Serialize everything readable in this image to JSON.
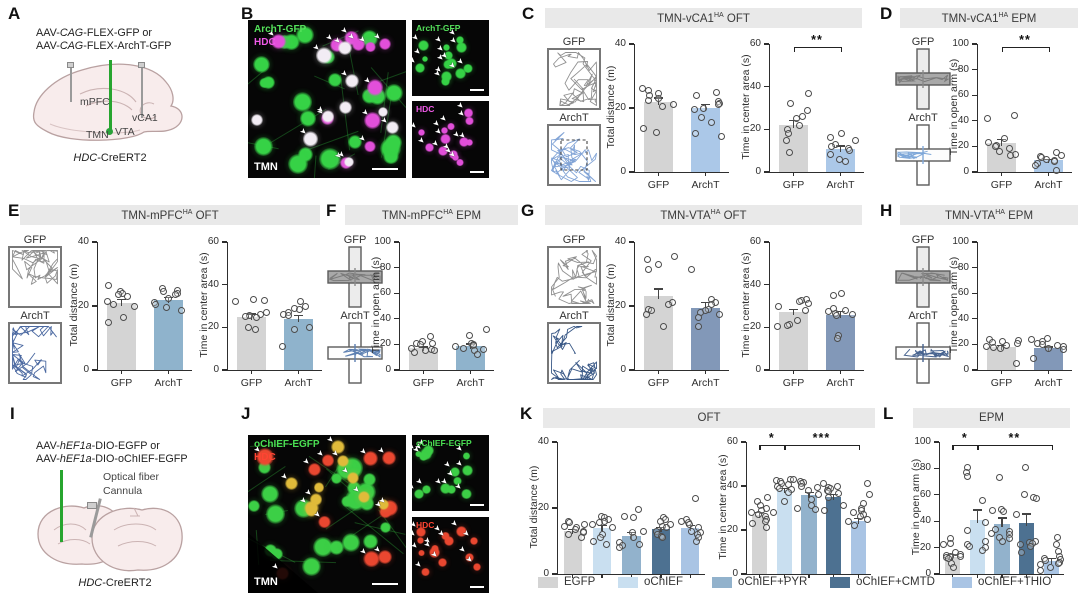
{
  "colors": {
    "header_bg": "#e9e9e9",
    "gfp_bar": "#d4d4d4",
    "archt_c": "#abc8e8",
    "archt_e": "#8fb3cc",
    "archt_g": "#8298b8",
    "green_fiber": "#27a52f"
  },
  "legend": {
    "position": "bottom",
    "items": [
      {
        "label": "EGFP",
        "color": "#d4d4d4"
      },
      {
        "label": "oChIEF",
        "color": "#c9dff0"
      },
      {
        "label": "oChIEF+PYR",
        "color": "#92b2cc"
      },
      {
        "label": "oChIEF+CMTD",
        "color": "#4d7191"
      },
      {
        "label": "oChIEF+THIO",
        "color": "#a9c4e4"
      }
    ]
  },
  "panels": {
    "A": {
      "letter": "A",
      "line1": {
        "pre": "AAV-",
        "it": "CAG",
        "post": "-FLEX-GFP or"
      },
      "line2": {
        "pre": "AAV-",
        "it": "CAG",
        "post": "-FLEX-ArchT-GFP"
      },
      "regions": {
        "mpfc": "mPFC",
        "vca1": "vCA1",
        "tmn": "TMN",
        "vta": "VTA"
      },
      "genotype": {
        "it": "HDC",
        "post": "-CreERT2"
      }
    },
    "B": {
      "letter": "B",
      "overlay_labels": [
        {
          "text": "ArchT-GFP",
          "color": "#55e25b"
        },
        {
          "text": "HDC",
          "color": "#f05ae8"
        }
      ],
      "region_label": "TMN",
      "sub_panels": [
        {
          "label": "ArchT-GFP",
          "color": "#55e25b",
          "cell_color": "#36d246"
        },
        {
          "label": "HDC",
          "color": "#f05ae8",
          "cell_color": "#e24fda"
        }
      ],
      "main_cell_colors": [
        "#36d246",
        "#e24fda",
        "#f2ecf4"
      ]
    },
    "C": {
      "letter": "C",
      "header": {
        "pre": "TMN-vCA1",
        "sup": "HA",
        "post": " OFT"
      },
      "conditions": [
        {
          "label": "GFP",
          "track_color": "#8a8a8a",
          "dashed": false
        },
        {
          "label": "ArchT",
          "track_color": "#7b9fd4",
          "dashed": true
        }
      ]
    },
    "D": {
      "letter": "D",
      "header": {
        "pre": "TMN-vCA1",
        "sup": "HA",
        "post": " EPM"
      },
      "conditions": [
        {
          "label": "GFP",
          "maze_color": "gray"
        },
        {
          "label": "ArchT",
          "maze_color": "#7fa8d9"
        }
      ]
    },
    "E": {
      "letter": "E",
      "header": {
        "pre": "TMN-mPFC",
        "sup": "HA",
        "post": " OFT"
      },
      "conditions": [
        {
          "label": "GFP",
          "track_color": "#8a8a8a",
          "dashed": false
        },
        {
          "label": "ArchT",
          "track_color": "#41619c",
          "dashed": false
        }
      ]
    },
    "F": {
      "letter": "F",
      "header": {
        "pre": "TMN-mPFC",
        "sup": "HA",
        "post": " EPM"
      },
      "conditions": [
        {
          "label": "GFP",
          "maze_color": "gray"
        },
        {
          "label": "ArchT",
          "maze_color": "#5d80b2"
        }
      ]
    },
    "G": {
      "letter": "G",
      "header": {
        "pre": "TMN-VTA",
        "sup": "HA",
        "post": " OFT"
      },
      "conditions": [
        {
          "label": "GFP",
          "track_color": "#8a8a8a",
          "dashed": false
        },
        {
          "label": "ArchT",
          "track_color": "#2e4f80",
          "dashed": false
        }
      ]
    },
    "H": {
      "letter": "H",
      "header": {
        "pre": "TMN-VTA",
        "sup": "HA",
        "post": " EPM"
      },
      "conditions": [
        {
          "label": "GFP",
          "maze_color": "gray"
        },
        {
          "label": "ArchT",
          "maze_color": "#47638f"
        }
      ]
    },
    "I": {
      "letter": "I",
      "line1": {
        "pre": "AAV-",
        "it": "hEF1a",
        "post": "-DIO-EGFP or"
      },
      "line2": {
        "pre": "AAV-",
        "it": "hEF1a",
        "post": "-DIO-oChIEF-EGFP"
      },
      "fiber_label": "Optical fiber",
      "cannula_label": "Cannula",
      "genotype": {
        "it": "HDC",
        "post": "-CreERT2"
      }
    },
    "J": {
      "letter": "J",
      "overlay_labels": [
        {
          "text": "oChIEF-EGFP",
          "color": "#4ade52"
        },
        {
          "text": "HDC",
          "color": "#ff4433"
        }
      ],
      "region_label": "TMN",
      "sub_panels": [
        {
          "label": "oChIEF-EGFP",
          "color": "#4ade52",
          "cell_color": "#3ccf46"
        },
        {
          "label": "HDC",
          "color": "#ff4433",
          "cell_color": "#ea4730"
        }
      ],
      "main_cell_colors": [
        "#3ccf46",
        "#ea4730",
        "#e0bb3a"
      ]
    },
    "K": {
      "letter": "K",
      "title": "OFT"
    },
    "L": {
      "letter": "L",
      "title": "EPM"
    }
  },
  "chart_data": [
    {
      "id": "c1",
      "type": "bar",
      "panel": "C",
      "title": "TMN-vCA1HA OFT",
      "ylabel": "Total distance (m)",
      "ylim": [
        0,
        40
      ],
      "yticks": [
        0,
        20,
        40
      ],
      "categories": [
        "GFP",
        "ArchT"
      ],
      "values": [
        22,
        20
      ],
      "sem": [
        1.3,
        1.2
      ],
      "colors": [
        "#d4d4d4",
        "#abc8e8"
      ],
      "show_xlabels": true,
      "sig": [],
      "points": [
        [
          26,
          25.5,
          24.5,
          24,
          23,
          22.5,
          21,
          20.5,
          13.5,
          12.5
        ],
        [
          25,
          24,
          22,
          21.5,
          21,
          20,
          19.5,
          17,
          15.5,
          12,
          11
        ]
      ]
    },
    {
      "id": "c2",
      "type": "bar",
      "panel": "C",
      "title": "TMN-vCA1HA OFT",
      "ylabel": "Time in center area (s)",
      "ylim": [
        0,
        60
      ],
      "yticks": [
        0,
        20,
        40,
        60
      ],
      "categories": [
        "GFP",
        "ArchT"
      ],
      "values": [
        22,
        11
      ],
      "sem": [
        2.5,
        1.5
      ],
      "colors": [
        "#d4d4d4",
        "#abc8e8"
      ],
      "show_xlabels": true,
      "sig": [
        {
          "from": 0,
          "to": 1,
          "label": "**"
        }
      ],
      "points": [
        [
          37,
          32,
          29,
          26,
          25,
          22,
          20,
          18,
          15,
          9
        ],
        [
          18,
          16,
          15,
          13,
          12,
          11,
          10,
          8,
          6,
          5
        ]
      ]
    },
    {
      "id": "d1",
      "type": "bar",
      "panel": "D",
      "title": "TMN-vCA1HA EPM",
      "ylabel": "Time in open arm (s)",
      "ylim": [
        0,
        100
      ],
      "yticks": [
        0,
        20,
        40,
        60,
        80,
        100
      ],
      "categories": [
        "GFP",
        "ArchT"
      ],
      "values": [
        23,
        9
      ],
      "sem": [
        3,
        1.5
      ],
      "colors": [
        "#d4d4d4",
        "#abc8e8"
      ],
      "show_xlabels": true,
      "sig": [
        {
          "from": 0,
          "to": 1,
          "label": "**"
        }
      ],
      "points": [
        [
          44,
          42,
          26,
          23,
          21,
          20,
          18,
          16,
          14,
          13
        ],
        [
          15,
          13,
          12,
          11,
          10,
          9,
          8,
          7,
          5,
          1
        ]
      ]
    },
    {
      "id": "e1",
      "type": "bar",
      "panel": "E",
      "title": "TMN-mPFCHA OFT",
      "ylabel": "Total distance (m)",
      "ylim": [
        0,
        40
      ],
      "yticks": [
        0,
        20,
        40
      ],
      "categories": [
        "GFP",
        "ArchT"
      ],
      "values": [
        21,
        22
      ],
      "sem": [
        1.3,
        0.8
      ],
      "colors": [
        "#d4d4d4",
        "#8fb3cc"
      ],
      "show_xlabels": true,
      "sig": [],
      "points": [
        [
          26.5,
          24.5,
          24,
          23.5,
          23,
          21.5,
          20.5,
          20,
          16.5,
          15
        ],
        [
          25.5,
          25,
          24.5,
          24,
          23.5,
          22.5,
          21,
          20.5,
          19.5,
          18.5
        ]
      ]
    },
    {
      "id": "e2",
      "type": "bar",
      "panel": "E",
      "title": "TMN-mPFCHA OFT",
      "ylabel": "Time in center area (s)",
      "ylim": [
        0,
        60
      ],
      "yticks": [
        0,
        20,
        40,
        60
      ],
      "categories": [
        "GFP",
        "ArchT"
      ],
      "values": [
        25,
        24
      ],
      "sem": [
        1.5,
        1.8
      ],
      "colors": [
        "#d4d4d4",
        "#8fb3cc"
      ],
      "show_xlabels": true,
      "sig": [],
      "points": [
        [
          33,
          32.5,
          32,
          27,
          26,
          25.5,
          25,
          24.5,
          20,
          19
        ],
        [
          32,
          30,
          29,
          28.5,
          27,
          26,
          25.5,
          20,
          19,
          11
        ]
      ]
    },
    {
      "id": "f1",
      "type": "bar",
      "panel": "F",
      "title": "TMN-mPFCHA EPM",
      "ylabel": "Time in open arm (s)",
      "ylim": [
        0,
        100
      ],
      "yticks": [
        0,
        20,
        40,
        60,
        80,
        100
      ],
      "categories": [
        "GFP",
        "ArchT"
      ],
      "values": [
        17,
        19
      ],
      "sem": [
        1.5,
        1.8
      ],
      "colors": [
        "#d4d4d4",
        "#8fb3cc"
      ],
      "show_xlabels": true,
      "sig": [],
      "points": [
        [
          26,
          22,
          21,
          20.5,
          20,
          17,
          16,
          15.5,
          15,
          14
        ],
        [
          32,
          27,
          21,
          20,
          19,
          18,
          17,
          16,
          15,
          12
        ]
      ]
    },
    {
      "id": "g1",
      "type": "bar",
      "panel": "G",
      "title": "TMN-VTAHA OFT",
      "ylabel": "Total distance (m)",
      "ylim": [
        0,
        40
      ],
      "yticks": [
        0,
        20,
        40
      ],
      "categories": [
        "GFP",
        "ArchT"
      ],
      "values": [
        23,
        19.5
      ],
      "sem": [
        2.5,
        1.8
      ],
      "colors": [
        "#d4d4d4",
        "#8298b8"
      ],
      "show_xlabels": true,
      "sig": [],
      "points": [
        [
          35.5,
          34.5,
          33,
          31.5,
          21,
          20.5,
          19,
          18.5,
          17.5,
          13.5
        ],
        [
          31.5,
          22,
          21,
          20.5,
          19,
          18.5,
          18,
          17.5,
          16.5,
          13.5
        ]
      ]
    },
    {
      "id": "g2",
      "type": "bar",
      "panel": "G",
      "title": "TMN-VTAHA OFT",
      "ylabel": "Time in center area (s)",
      "ylim": [
        0,
        60
      ],
      "yticks": [
        0,
        20,
        40,
        60
      ],
      "categories": [
        "GFP",
        "ArchT"
      ],
      "values": [
        27,
        26
      ],
      "sem": [
        1.6,
        1.8
      ],
      "colors": [
        "#d4d4d4",
        "#8298b8"
      ],
      "show_xlabels": true,
      "sig": [],
      "points": [
        [
          33,
          32.5,
          32,
          31,
          30,
          28,
          23,
          21.5,
          21,
          20.5
        ],
        [
          36,
          35,
          29,
          28,
          27.5,
          26.5,
          26,
          25.5,
          16,
          15
        ]
      ]
    },
    {
      "id": "h1",
      "type": "bar",
      "panel": "H",
      "title": "TMN-VTAHA EPM",
      "ylabel": "Time in open arm (s)",
      "ylim": [
        0,
        100
      ],
      "yticks": [
        0,
        20,
        40,
        60,
        80,
        100
      ],
      "categories": [
        "GFP",
        "ArchT"
      ],
      "values": [
        18,
        17
      ],
      "sem": [
        1.6,
        1.5
      ],
      "colors": [
        "#d4d4d4",
        "#8298b8"
      ],
      "show_xlabels": true,
      "sig": [],
      "points": [
        [
          24,
          23,
          22,
          21.5,
          21,
          19,
          18,
          17.5,
          17,
          5
        ],
        [
          25,
          24,
          22,
          21,
          20,
          19,
          18,
          17,
          16,
          9
        ]
      ]
    },
    {
      "id": "k1",
      "type": "bar",
      "panel": "K",
      "title": "OFT",
      "ylabel": "Total distance (m)",
      "ylim": [
        0,
        40
      ],
      "yticks": [
        0,
        20,
        40
      ],
      "categories": [
        "EGFP",
        "oChIEF",
        "oChIEF+PYR",
        "oChIEF+CMTD",
        "oChIEF+THIO"
      ],
      "values": [
        13,
        14,
        11.5,
        13.5,
        14
      ],
      "sem": [
        0.7,
        0.8,
        1.3,
        0.8,
        0.9
      ],
      "colors": [
        "#d4d4d4",
        "#c9dff0",
        "#92b2cc",
        "#4d7191",
        "#a9c4e4"
      ],
      "show_xlabels": false,
      "sig": [],
      "points": [
        [
          16,
          15.5,
          15,
          14.5,
          14,
          13.5,
          13,
          12.5,
          12,
          11
        ],
        [
          17.5,
          17,
          16.5,
          16,
          15.5,
          15,
          14,
          12,
          11,
          10,
          9
        ],
        [
          19.5,
          17.5,
          17,
          13,
          12.5,
          11,
          9.5,
          9,
          8.5,
          8
        ],
        [
          17,
          16.5,
          16,
          15,
          14.5,
          14,
          13,
          12,
          11.5,
          11
        ],
        [
          23,
          16.5,
          16,
          15.5,
          15,
          14,
          13,
          12.5,
          12,
          11,
          10
        ]
      ]
    },
    {
      "id": "k2",
      "type": "bar",
      "panel": "K",
      "title": "OFT",
      "ylabel": "Time in center area (s)",
      "ylim": [
        0,
        60
      ],
      "yticks": [
        0,
        20,
        40,
        60
      ],
      "categories": [
        "EGFP",
        "oChIEF",
        "oChIEF+PYR",
        "oChIEF+CMTD",
        "oChIEF+THIO"
      ],
      "values": [
        27,
        38,
        36,
        35,
        24
      ],
      "sem": [
        1.3,
        1.2,
        1.4,
        1.3,
        1.5
      ],
      "colors": [
        "#d4d4d4",
        "#c9dff0",
        "#92b2cc",
        "#4d7191",
        "#a9c4e4"
      ],
      "show_xlabels": false,
      "sig": [
        {
          "from": 0,
          "to": 1,
          "label": "*"
        },
        {
          "from": 1,
          "to": 4,
          "label": "***"
        }
      ],
      "points": [
        [
          35,
          33,
          31,
          30,
          29,
          28,
          27,
          26,
          25,
          24,
          23,
          21
        ],
        [
          43,
          43,
          42.5,
          42,
          41,
          40.5,
          40,
          39,
          38.5,
          37,
          33,
          28
        ],
        [
          42,
          41.5,
          41,
          40,
          39.5,
          38,
          36,
          34,
          31,
          30,
          29.5
        ],
        [
          41,
          40,
          39.5,
          39,
          38,
          37.5,
          36.5,
          35,
          31,
          29
        ],
        [
          41,
          36,
          32,
          30,
          29,
          28,
          27,
          26,
          25,
          24,
          22
        ]
      ]
    },
    {
      "id": "l1",
      "type": "bar",
      "panel": "L",
      "title": "EPM",
      "ylabel": "Time in open arm (s)",
      "ylim": [
        0,
        100
      ],
      "yticks": [
        0,
        20,
        40,
        60,
        80,
        100
      ],
      "categories": [
        "EGFP",
        "oChIEF",
        "oChIEF+PYR",
        "oChIEF+CMTD",
        "oChIEF+THIO"
      ],
      "values": [
        13,
        41,
        38,
        39,
        10
      ],
      "sem": [
        2,
        8,
        5,
        7,
        2
      ],
      "colors": [
        "#d4d4d4",
        "#c9dff0",
        "#92b2cc",
        "#4d7191",
        "#a9c4e4"
      ],
      "show_xlabels": false,
      "sig": [
        {
          "from": 0,
          "to": 1,
          "label": "*"
        },
        {
          "from": 1,
          "to": 4,
          "label": "**"
        }
      ],
      "points": [
        [
          27,
          23,
          22,
          16,
          15,
          14,
          13.5,
          13,
          12.5,
          12,
          8,
          5
        ],
        [
          81,
          77,
          74,
          56,
          39,
          33,
          25,
          22,
          21,
          20,
          18
        ],
        [
          73,
          49,
          48,
          47,
          34,
          32,
          31,
          30,
          28,
          27,
          25
        ],
        [
          81,
          60,
          58,
          57,
          45,
          25,
          24,
          23,
          22,
          21,
          16
        ],
        [
          28,
          22,
          17,
          13,
          12,
          11,
          10,
          9,
          8,
          7,
          5,
          3
        ]
      ]
    }
  ]
}
